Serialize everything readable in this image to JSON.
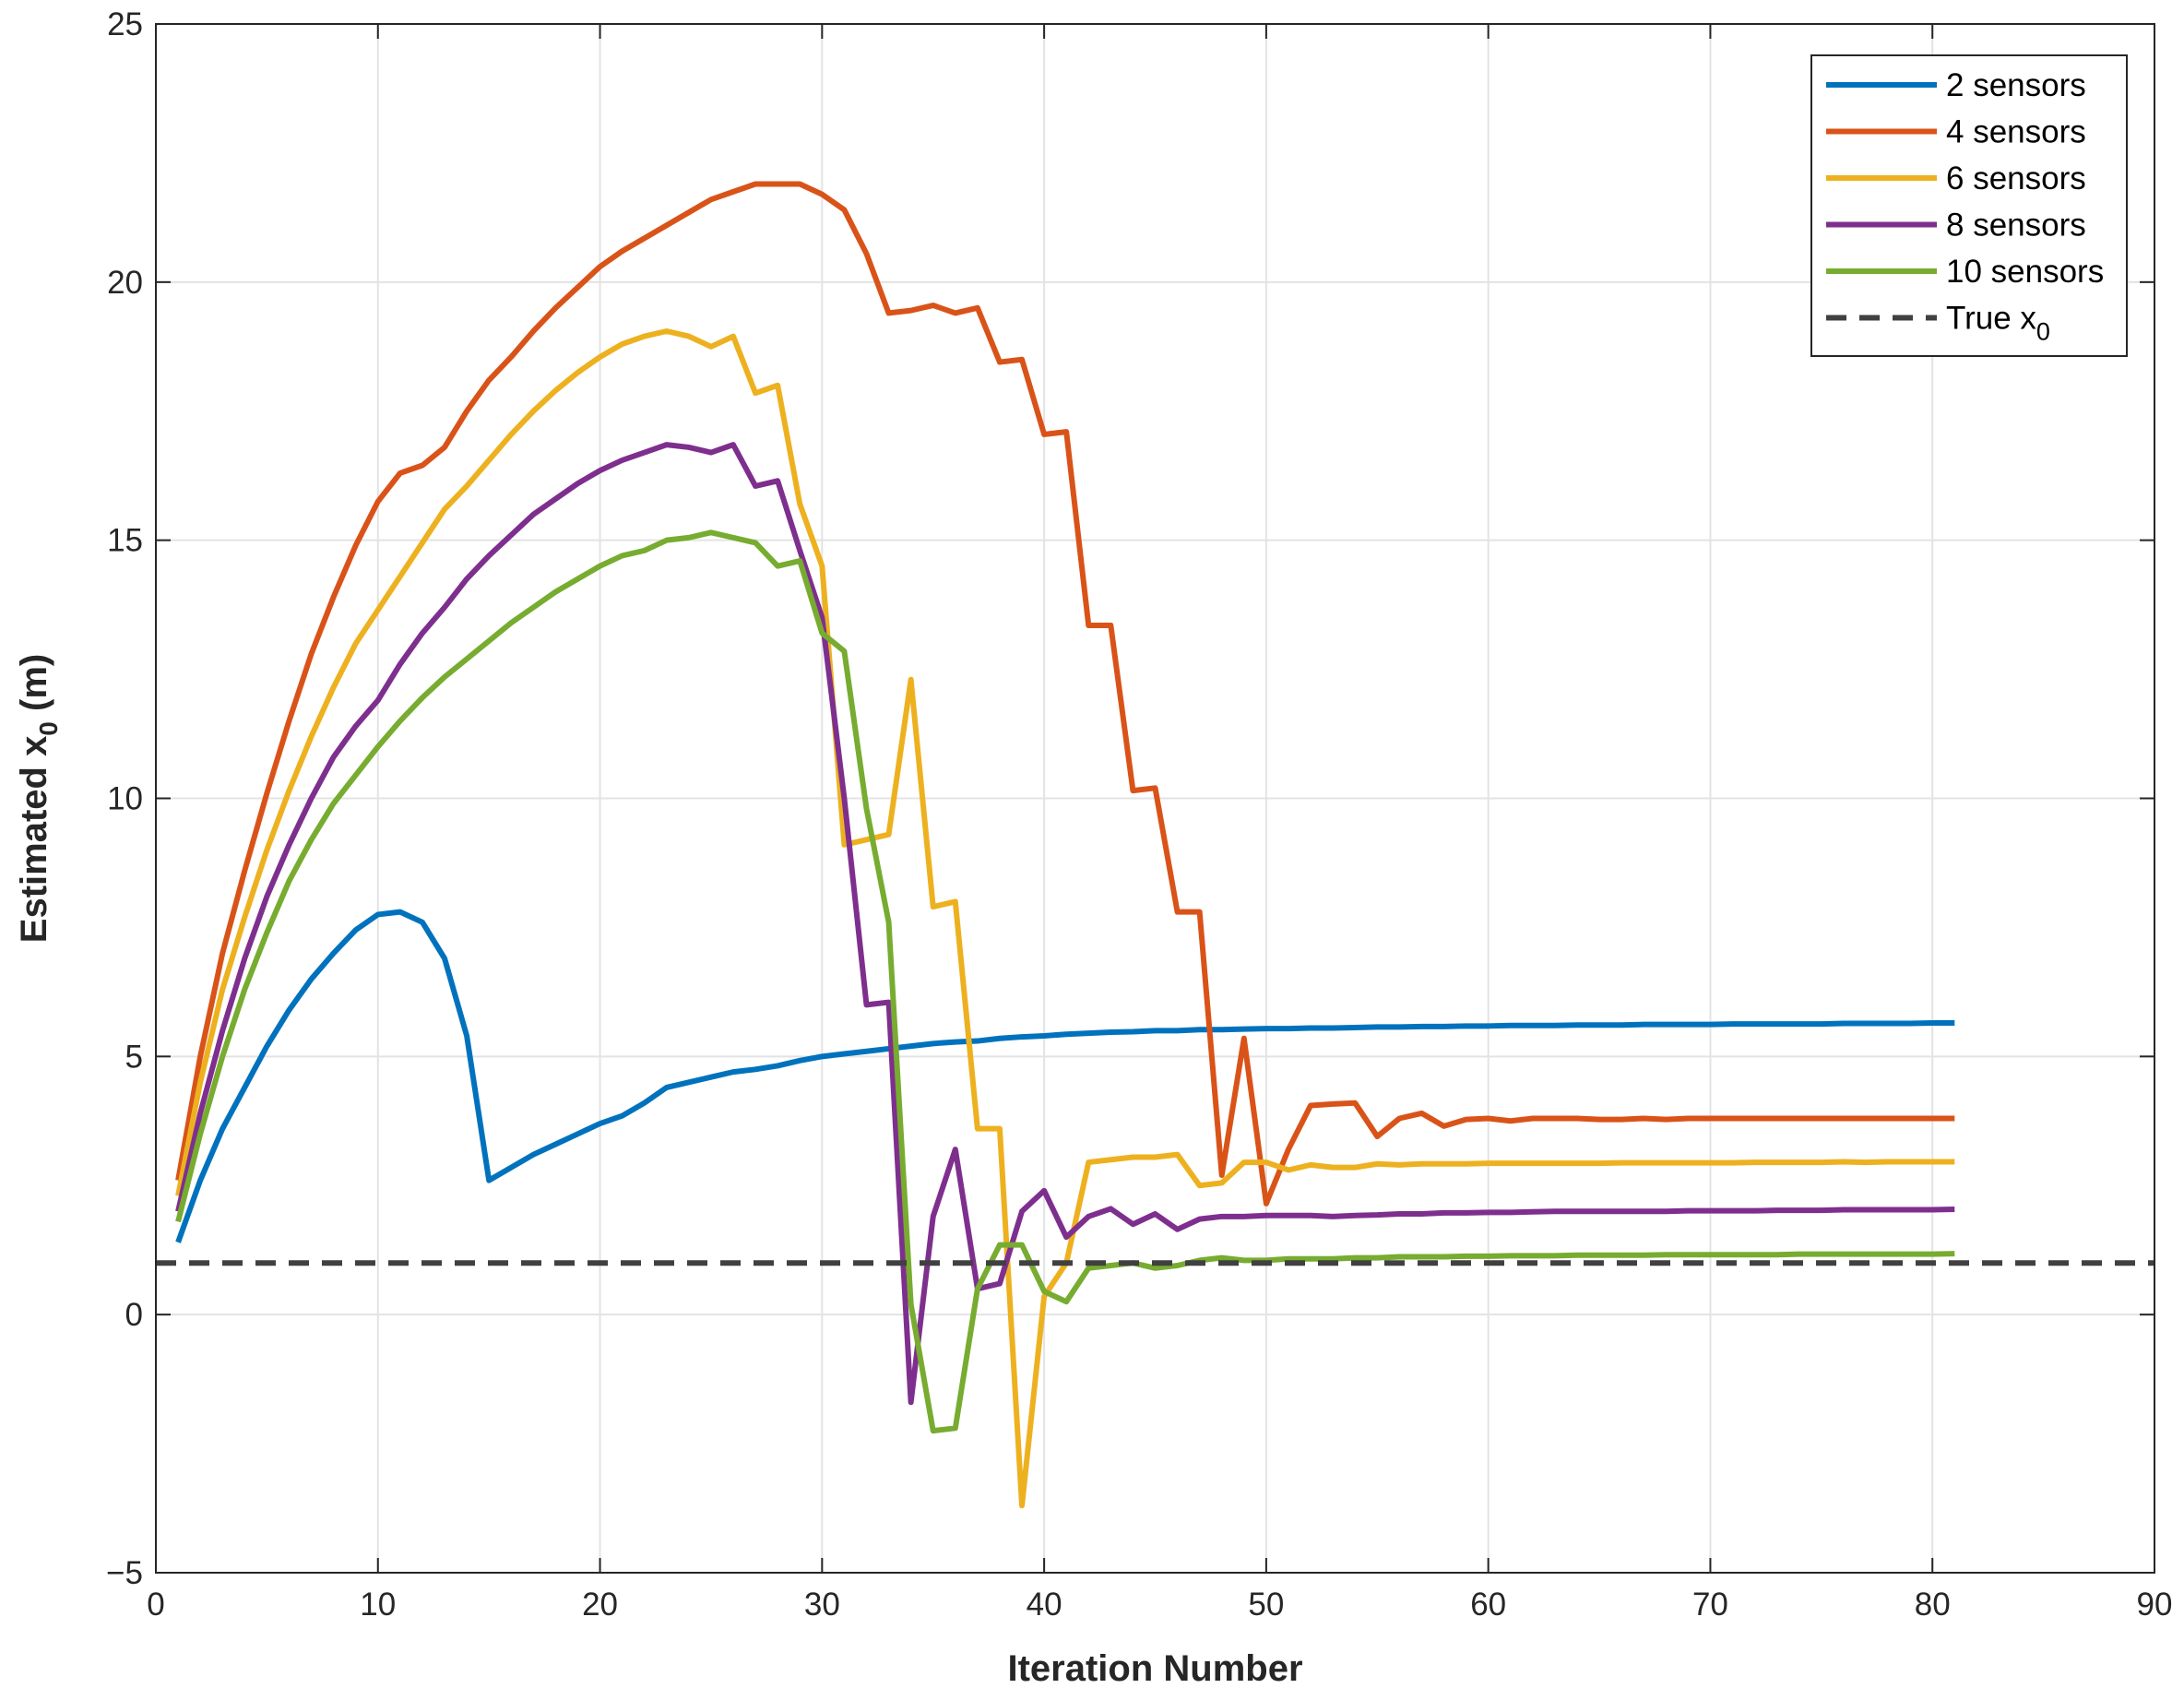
{
  "chart_data": {
    "type": "line",
    "xlabel": "Iteration Number",
    "ylabel": "Estimated x",
    "ylabel_subscript": "0",
    "ylabel_unit": "(m)",
    "xlim": [
      0,
      90
    ],
    "ylim": [
      -5,
      25
    ],
    "xticks": [
      0,
      10,
      20,
      30,
      40,
      50,
      60,
      70,
      80,
      90
    ],
    "yticks": [
      -5,
      0,
      5,
      10,
      15,
      20,
      25
    ],
    "ytick_labels": [
      "−5",
      "0",
      "5",
      "10",
      "15",
      "20",
      "25"
    ],
    "grid": true,
    "legend_position": "top-right",
    "x": [
      1,
      2,
      3,
      4,
      5,
      6,
      7,
      8,
      9,
      10,
      11,
      12,
      13,
      14,
      15,
      16,
      17,
      18,
      19,
      20,
      21,
      22,
      23,
      24,
      25,
      26,
      27,
      28,
      29,
      30,
      31,
      32,
      33,
      34,
      35,
      36,
      37,
      38,
      39,
      40,
      41,
      42,
      43,
      44,
      45,
      46,
      47,
      48,
      49,
      50,
      51,
      52,
      53,
      54,
      55,
      56,
      57,
      58,
      59,
      60,
      61,
      62,
      63,
      64,
      65,
      66,
      67,
      68,
      69,
      70,
      71,
      72,
      73,
      74,
      75,
      76,
      77,
      78,
      79,
      80,
      81
    ],
    "series": [
      {
        "name": "2 sensors",
        "color": "#0072BD",
        "values": [
          1.4,
          2.6,
          3.6,
          4.4,
          5.2,
          5.9,
          6.5,
          7.0,
          7.45,
          7.75,
          7.8,
          7.6,
          6.9,
          5.4,
          2.6,
          2.85,
          3.1,
          3.3,
          3.5,
          3.7,
          3.85,
          4.1,
          4.4,
          4.5,
          4.6,
          4.7,
          4.75,
          4.82,
          4.92,
          5.0,
          5.05,
          5.1,
          5.15,
          5.2,
          5.25,
          5.28,
          5.3,
          5.35,
          5.38,
          5.4,
          5.43,
          5.45,
          5.47,
          5.48,
          5.5,
          5.5,
          5.52,
          5.52,
          5.53,
          5.54,
          5.54,
          5.55,
          5.55,
          5.56,
          5.57,
          5.57,
          5.58,
          5.58,
          5.59,
          5.59,
          5.6,
          5.6,
          5.6,
          5.61,
          5.61,
          5.61,
          5.62,
          5.62,
          5.62,
          5.62,
          5.63,
          5.63,
          5.63,
          5.63,
          5.63,
          5.64,
          5.64,
          5.64,
          5.64,
          5.65,
          5.65
        ]
      },
      {
        "name": "4 sensors",
        "color": "#D95319",
        "values": [
          2.6,
          5.0,
          7.0,
          8.6,
          10.1,
          11.5,
          12.8,
          13.9,
          14.9,
          15.75,
          16.3,
          16.45,
          16.8,
          17.5,
          18.1,
          18.55,
          19.05,
          19.5,
          19.9,
          20.3,
          20.6,
          20.85,
          21.1,
          21.35,
          21.6,
          21.75,
          21.9,
          21.9,
          21.9,
          21.7,
          21.4,
          20.55,
          19.4,
          19.45,
          19.55,
          19.4,
          19.5,
          18.45,
          18.5,
          17.05,
          17.1,
          13.35,
          13.35,
          10.15,
          10.2,
          7.8,
          7.8,
          2.7,
          5.35,
          2.15,
          3.2,
          4.05,
          4.08,
          4.1,
          3.45,
          3.8,
          3.9,
          3.65,
          3.78,
          3.8,
          3.75,
          3.8,
          3.8,
          3.8,
          3.78,
          3.78,
          3.8,
          3.78,
          3.8,
          3.8,
          3.8,
          3.8,
          3.8,
          3.8,
          3.8,
          3.8,
          3.8,
          3.8,
          3.8,
          3.8,
          3.8
        ]
      },
      {
        "name": "6 sensors",
        "color": "#EDB120",
        "values": [
          2.3,
          4.5,
          6.3,
          7.7,
          9.0,
          10.15,
          11.2,
          12.15,
          13.0,
          13.65,
          14.3,
          14.95,
          15.6,
          16.05,
          16.55,
          17.05,
          17.5,
          17.9,
          18.25,
          18.55,
          18.8,
          18.95,
          19.05,
          18.95,
          18.75,
          18.95,
          17.85,
          18.0,
          15.7,
          14.5,
          9.1,
          9.2,
          9.3,
          12.3,
          7.9,
          8.0,
          3.6,
          3.6,
          -3.7,
          0.35,
          1.0,
          2.95,
          3.0,
          3.05,
          3.05,
          3.1,
          2.5,
          2.55,
          2.95,
          2.95,
          2.8,
          2.9,
          2.85,
          2.85,
          2.92,
          2.9,
          2.92,
          2.92,
          2.92,
          2.93,
          2.93,
          2.93,
          2.93,
          2.93,
          2.93,
          2.94,
          2.94,
          2.94,
          2.94,
          2.94,
          2.94,
          2.95,
          2.95,
          2.95,
          2.95,
          2.96,
          2.95,
          2.96,
          2.96,
          2.96,
          2.96
        ]
      },
      {
        "name": "8 sensors",
        "color": "#7E2F8E",
        "values": [
          2.0,
          3.9,
          5.5,
          6.9,
          8.1,
          9.1,
          10.0,
          10.8,
          11.4,
          11.9,
          12.6,
          13.2,
          13.7,
          14.25,
          14.7,
          15.1,
          15.5,
          15.8,
          16.1,
          16.35,
          16.55,
          16.7,
          16.85,
          16.8,
          16.7,
          16.85,
          16.05,
          16.15,
          14.8,
          13.5,
          10.0,
          6.0,
          6.05,
          -1.7,
          1.9,
          3.2,
          0.5,
          0.6,
          2.0,
          2.4,
          1.5,
          1.9,
          2.05,
          1.75,
          1.95,
          1.65,
          1.85,
          1.9,
          1.9,
          1.92,
          1.92,
          1.92,
          1.9,
          1.92,
          1.93,
          1.95,
          1.95,
          1.97,
          1.97,
          1.98,
          1.98,
          1.99,
          2.0,
          2.0,
          2.0,
          2.0,
          2.0,
          2.0,
          2.01,
          2.01,
          2.01,
          2.01,
          2.02,
          2.02,
          2.02,
          2.03,
          2.03,
          2.03,
          2.03,
          2.03,
          2.04
        ]
      },
      {
        "name": "10 sensors",
        "color": "#77AC30",
        "values": [
          1.8,
          3.5,
          5.0,
          6.3,
          7.4,
          8.4,
          9.2,
          9.9,
          10.45,
          11.0,
          11.5,
          11.95,
          12.35,
          12.7,
          13.05,
          13.4,
          13.7,
          14.0,
          14.25,
          14.5,
          14.7,
          14.8,
          15.0,
          15.05,
          15.15,
          15.05,
          14.95,
          14.5,
          14.6,
          13.2,
          12.85,
          9.8,
          7.6,
          0.2,
          -2.25,
          -2.2,
          0.5,
          1.35,
          1.35,
          0.45,
          0.25,
          0.9,
          0.95,
          1.0,
          0.9,
          0.95,
          1.05,
          1.1,
          1.05,
          1.05,
          1.08,
          1.08,
          1.08,
          1.1,
          1.1,
          1.12,
          1.12,
          1.12,
          1.13,
          1.13,
          1.14,
          1.14,
          1.14,
          1.15,
          1.15,
          1.15,
          1.15,
          1.16,
          1.16,
          1.16,
          1.16,
          1.16,
          1.16,
          1.17,
          1.17,
          1.17,
          1.17,
          1.17,
          1.17,
          1.17,
          1.18
        ]
      },
      {
        "name": "True x",
        "name_subscript": "0",
        "color": "#404040",
        "dashed": true,
        "values_const": 1.0
      }
    ]
  }
}
